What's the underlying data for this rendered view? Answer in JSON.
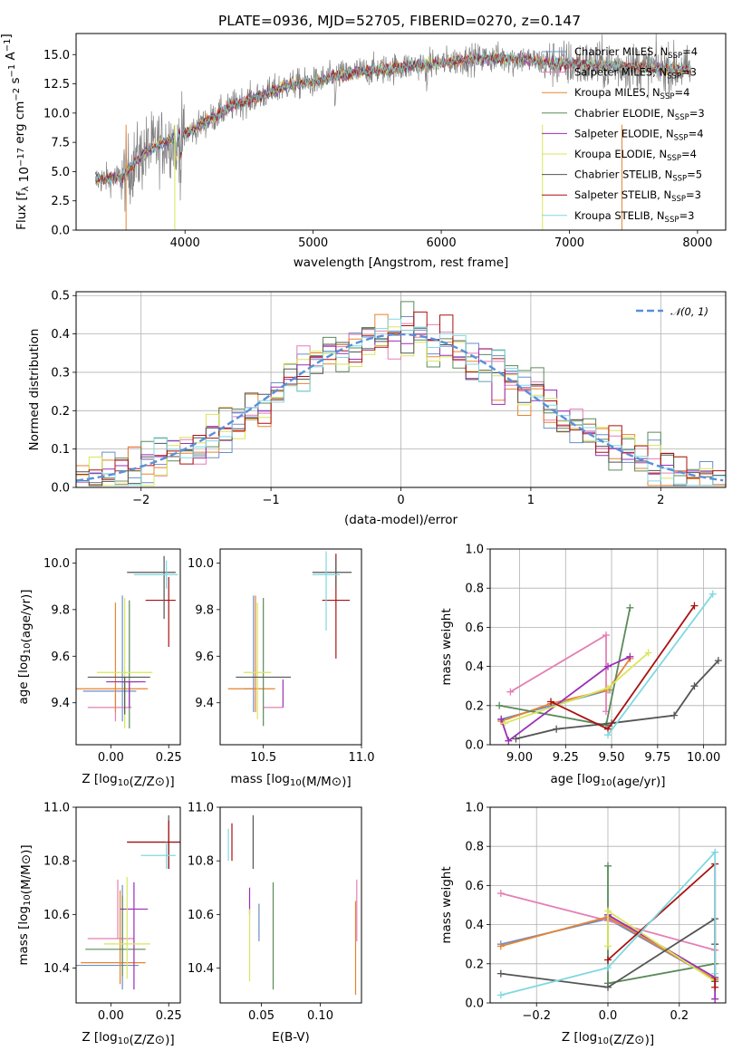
{
  "figure_title": "PLATE=0936, MJD=52705, FIBERID=0270, z=0.147",
  "colors": {
    "Chabrier MILES": "#6a8fc8",
    "Salpeter MILES": "#e57fb5",
    "Kroupa MILES": "#e8832f",
    "Chabrier ELODIE": "#5a8a5a",
    "Salpeter ELODIE": "#9b2fb5",
    "Kroupa ELODIE": "#d8e65a",
    "Chabrier STELIB": "#555555",
    "Salpeter STELIB": "#aa1111",
    "Kroupa STELIB": "#7fd8e0",
    "spectrum": "#808080",
    "gaussian": "#5a8fd8"
  },
  "chart_data": [
    {
      "id": "spectrum",
      "type": "line",
      "xlabel": "wavelength [Angstrom, rest frame]",
      "ylabel": "Flux [f_λ 10^-17 erg cm^-2 s^-1 A^-1]",
      "xlim": [
        3150,
        8220
      ],
      "ylim": [
        0,
        16.8
      ],
      "xticks": [
        "4000",
        "5000",
        "6000",
        "7000",
        "8000"
      ],
      "yticks": [
        "0.0",
        "2.5",
        "5.0",
        "7.5",
        "10.0",
        "12.5",
        "15.0"
      ],
      "x_range_data": [
        3300,
        7950
      ],
      "continuum_points": [
        [
          3300,
          4.3
        ],
        [
          3500,
          4.5
        ],
        [
          3700,
          6.8
        ],
        [
          3900,
          7.8
        ],
        [
          4000,
          8.2
        ],
        [
          4200,
          9.5
        ],
        [
          4400,
          10.8
        ],
        [
          4600,
          11.5
        ],
        [
          4800,
          12.4
        ],
        [
          5000,
          12.6
        ],
        [
          5200,
          13.2
        ],
        [
          5400,
          13.6
        ],
        [
          5600,
          13.8
        ],
        [
          5800,
          14.1
        ],
        [
          6000,
          14.3
        ],
        [
          6200,
          14.6
        ],
        [
          6400,
          14.7
        ],
        [
          6600,
          14.7
        ],
        [
          6800,
          14.3
        ],
        [
          7000,
          14.2
        ],
        [
          7200,
          14.1
        ],
        [
          7400,
          14.0
        ],
        [
          7600,
          13.9
        ],
        [
          7800,
          13.8
        ],
        [
          7950,
          13.7
        ]
      ],
      "legend": [
        {
          "label": "Chabrier MILES, N",
          "sub": "SSP",
          "rest": "=4",
          "color": "#6a8fc8"
        },
        {
          "label": "Salpeter MILES, N",
          "sub": "SSP",
          "rest": "=3",
          "color": "#e57fb5"
        },
        {
          "label": "Kroupa MILES, N",
          "sub": "SSP",
          "rest": "=4",
          "color": "#e8832f"
        },
        {
          "label": "Chabrier ELODIE, N",
          "sub": "SSP",
          "rest": "=3",
          "color": "#5a8a5a"
        },
        {
          "label": "Salpeter ELODIE, N",
          "sub": "SSP",
          "rest": "=4",
          "color": "#9b2fb5"
        },
        {
          "label": "Kroupa ELODIE, N",
          "sub": "SSP",
          "rest": "=4",
          "color": "#d8e65a"
        },
        {
          "label": "Chabrier STELIB, N",
          "sub": "SSP",
          "rest": "=5",
          "color": "#555555"
        },
        {
          "label": "Salpeter STELIB, N",
          "sub": "SSP",
          "rest": "=3",
          "color": "#aa1111"
        },
        {
          "label": "Kroupa STELIB, N",
          "sub": "SSP",
          "rest": "=3",
          "color": "#7fd8e0"
        }
      ]
    },
    {
      "id": "residuals",
      "type": "histogram",
      "xlabel": "(data-model)/error",
      "ylabel": "Normed distribution",
      "xlim": [
        -2.5,
        2.5
      ],
      "ylim": [
        0,
        0.51
      ],
      "xticks": [
        "−2",
        "−1",
        "0",
        "1",
        "2"
      ],
      "yticks": [
        "0.0",
        "0.1",
        "0.2",
        "0.3",
        "0.4",
        "0.5"
      ],
      "bin_width": 0.1,
      "grid": true,
      "legend": [
        {
          "label": "N(0,1)",
          "color": "#5a8fd8"
        }
      ]
    },
    {
      "id": "age_vs_Z",
      "type": "errorbar",
      "xlabel": "Z [log10(Z/Z⊙)]",
      "ylabel": "age [log10(age/yr)]",
      "xlim": [
        -0.15,
        0.3
      ],
      "ylim": [
        9.22,
        10.06
      ],
      "xticks": [
        "0.00",
        "0.25"
      ],
      "yticks": [
        "9.4",
        "9.6",
        "9.8",
        "10.0"
      ],
      "points": [
        {
          "model": "Chabrier MILES",
          "x": 0.05,
          "y": 9.45,
          "xerr": [
            0.17,
            0.06
          ],
          "yerr": [
            0.13,
            0.41
          ]
        },
        {
          "model": "Salpeter MILES",
          "x": 0.02,
          "y": 9.38,
          "xerr": [
            0.12,
            0.07
          ],
          "yerr": [
            0.06,
            0.06
          ]
        },
        {
          "model": "Kroupa MILES",
          "x": 0.02,
          "y": 9.46,
          "xerr": [
            0.17,
            0.14
          ],
          "yerr": [
            0.1,
            0.37
          ]
        },
        {
          "model": "Chabrier ELODIE",
          "x": 0.08,
          "y": 9.49,
          "xerr": [
            0.04,
            0.04
          ],
          "yerr": [
            0.2,
            0.35
          ]
        },
        {
          "model": "Salpeter ELODIE",
          "x": 0.08,
          "y": 9.49,
          "xerr": [
            0.1,
            0.07
          ],
          "yerr": [
            0.11,
            0.0
          ]
        },
        {
          "model": "Kroupa ELODIE",
          "x": 0.06,
          "y": 9.53,
          "xerr": [
            0.12,
            0.12
          ],
          "yerr": [
            0.24,
            0.32
          ]
        },
        {
          "model": "Chabrier STELIB",
          "x": 0.06,
          "y": 9.51,
          "xerr": [
            0.16,
            0.11
          ],
          "yerr": [
            0.16,
            0.0
          ]
        },
        {
          "model": "Salpeter STELIB",
          "x": 0.25,
          "y": 9.84,
          "xerr": [
            0.1,
            0.03
          ],
          "yerr": [
            0.2,
            0.1
          ]
        },
        {
          "model": "Chabrier STELIB",
          "x": 0.23,
          "y": 9.96,
          "xerr": [
            0.16,
            0.05
          ],
          "yerr": [
            0.2,
            0.07
          ]
        },
        {
          "model": "Kroupa STELIB",
          "x": 0.24,
          "y": 9.95,
          "xerr": [
            0.14,
            0.05
          ],
          "yerr": [
            0.06,
            0.06
          ]
        }
      ]
    },
    {
      "id": "age_vs_mass",
      "type": "errorbar",
      "xlabel": "mass [log10(M/M⊙)]",
      "ylabel": "",
      "xlim": [
        10.28,
        11.0
      ],
      "ylim": [
        9.22,
        10.06
      ],
      "xticks": [
        "10.5",
        "11.0"
      ],
      "yticks": [
        "9.4",
        "9.6",
        "9.8",
        "10.0"
      ],
      "points": [
        {
          "model": "Chabrier MILES",
          "x": 10.45,
          "y": 9.46,
          "xerr": [
            0.05,
            0.0
          ],
          "yerr": [
            0.1,
            0.4
          ]
        },
        {
          "model": "Salpeter MILES",
          "x": 10.5,
          "y": 9.38,
          "xerr": [
            0.0,
            0.1
          ],
          "yerr": [
            0.0,
            0.0
          ]
        },
        {
          "model": "Kroupa MILES",
          "x": 10.46,
          "y": 9.46,
          "xerr": [
            0.14,
            0.1
          ],
          "yerr": [
            0.1,
            0.4
          ]
        },
        {
          "model": "Chabrier ELODIE",
          "x": 10.5,
          "y": 9.5,
          "xerr": [
            0.0,
            0.0
          ],
          "yerr": [
            0.2,
            0.35
          ]
        },
        {
          "model": "Kroupa ELODIE",
          "x": 10.47,
          "y": 9.53,
          "xerr": [
            0.07,
            0.07
          ],
          "yerr": [
            0.2,
            0.3
          ]
        },
        {
          "model": "Salpeter ELODIE",
          "x": 10.6,
          "y": 9.5,
          "xerr": [
            0.0,
            0.0
          ],
          "yerr": [
            0.12,
            0.0
          ]
        },
        {
          "model": "Chabrier STELIB",
          "x": 10.5,
          "y": 9.51,
          "xerr": [
            0.14,
            0.14
          ],
          "yerr": [
            0.0,
            0.0
          ]
        },
        {
          "model": "Salpeter STELIB",
          "x": 10.87,
          "y": 9.84,
          "xerr": [
            0.07,
            0.07
          ],
          "yerr": [
            0.25,
            0.2
          ]
        },
        {
          "model": "Chabrier STELIB",
          "x": 10.87,
          "y": 9.96,
          "xerr": [
            0.12,
            0.08
          ],
          "yerr": [
            0.06,
            0.06
          ]
        },
        {
          "model": "Kroupa STELIB",
          "x": 10.82,
          "y": 9.95,
          "xerr": [
            0.07,
            0.07
          ],
          "yerr": [
            0.24,
            0.1
          ]
        }
      ]
    },
    {
      "id": "massweight_vs_age",
      "type": "line",
      "xlabel": "age [log10(age/yr)]",
      "ylabel": "mass weight",
      "xlim": [
        8.84,
        10.12
      ],
      "ylim": [
        0.0,
        1.0
      ],
      "xticks": [
        "9.00",
        "9.25",
        "9.50",
        "9.75",
        "10.00"
      ],
      "yticks": [
        "0.0",
        "0.2",
        "0.4",
        "0.6",
        "0.8",
        "1.0"
      ],
      "grid": true,
      "series": [
        {
          "model": "Chabrier MILES",
          "x": [
            8.9,
            9.49
          ],
          "y": [
            0.13,
            0.28
          ]
        },
        {
          "model": "Salpeter MILES",
          "x": [
            8.95,
            9.47,
            9.47
          ],
          "y": [
            0.27,
            0.56,
            0.17
          ]
        },
        {
          "model": "Kroupa MILES",
          "x": [
            8.9,
            9.17,
            9.48,
            9.6
          ],
          "y": [
            0.12,
            0.21,
            0.28,
            0.44
          ]
        },
        {
          "model": "Chabrier ELODIE",
          "x": [
            8.89,
            9.47,
            9.6
          ],
          "y": [
            0.2,
            0.1,
            0.7
          ]
        },
        {
          "model": "Salpeter ELODIE",
          "x": [
            8.9,
            8.94,
            9.48,
            9.6
          ],
          "y": [
            0.13,
            0.02,
            0.4,
            0.45
          ]
        },
        {
          "model": "Kroupa ELODIE",
          "x": [
            8.92,
            9.48,
            9.7
          ],
          "y": [
            0.11,
            0.29,
            0.47
          ]
        },
        {
          "model": "Chabrier STELIB",
          "x": [
            8.98,
            9.2,
            9.5,
            9.84,
            9.95,
            10.08
          ],
          "y": [
            0.03,
            0.08,
            0.11,
            0.15,
            0.3,
            0.43
          ]
        },
        {
          "model": "Salpeter STELIB",
          "x": [
            9.17,
            9.48,
            9.95
          ],
          "y": [
            0.22,
            0.08,
            0.71
          ]
        },
        {
          "model": "Kroupa STELIB",
          "x": [
            9.48,
            10.05
          ],
          "y": [
            0.05,
            0.77
          ]
        }
      ]
    },
    {
      "id": "mass_vs_Z",
      "type": "errorbar",
      "xlabel": "Z [log10(Z/Z⊙)]",
      "ylabel": "mass [log10(M/M⊙)]",
      "xlim": [
        -0.15,
        0.3
      ],
      "ylim": [
        10.27,
        11.0
      ],
      "xticks": [
        "0.00",
        "0.25"
      ],
      "yticks": [
        "10.4",
        "10.6",
        "10.8",
        "11.0"
      ],
      "points": [
        {
          "model": "Chabrier MILES",
          "x": 0.05,
          "y": 10.41,
          "xerr": [
            0.2,
            0.07
          ],
          "yerr": [
            0.09,
            0.3
          ]
        },
        {
          "model": "Salpeter MILES",
          "x": 0.03,
          "y": 10.51,
          "xerr": [
            0.13,
            0.07
          ],
          "yerr": [
            0.0,
            0.22
          ]
        },
        {
          "model": "Kroupa MILES",
          "x": 0.04,
          "y": 10.42,
          "xerr": [
            0.17,
            0.11
          ],
          "yerr": [
            0.08,
            0.27
          ]
        },
        {
          "model": "Chabrier ELODIE",
          "x": 0.05,
          "y": 10.47,
          "xerr": [
            0.16,
            0.1
          ],
          "yerr": [
            0.1,
            0.2
          ]
        },
        {
          "model": "Salpeter ELODIE",
          "x": 0.1,
          "y": 10.62,
          "xerr": [
            0.06,
            0.06
          ],
          "yerr": [
            0.3,
            0.1
          ]
        },
        {
          "model": "Kroupa ELODIE",
          "x": 0.07,
          "y": 10.49,
          "xerr": [
            0.1,
            0.1
          ],
          "yerr": [
            0.13,
            0.25
          ]
        },
        {
          "model": "Chabrier STELIB",
          "x": 0.25,
          "y": 10.87,
          "xerr": [
            0.18,
            0.05
          ],
          "yerr": [
            0.1,
            0.1
          ]
        },
        {
          "model": "Salpeter STELIB",
          "x": 0.25,
          "y": 10.87,
          "xerr": [
            0.18,
            0.05
          ],
          "yerr": [
            0.1,
            0.08
          ]
        },
        {
          "model": "Kroupa STELIB",
          "x": 0.24,
          "y": 10.82,
          "xerr": [
            0.11,
            0.04
          ],
          "yerr": [
            0.05,
            0.05
          ]
        }
      ]
    },
    {
      "id": "mass_vs_ebv",
      "type": "errorbar",
      "xlabel": "E(B-V)",
      "ylabel": "",
      "xlim": [
        0.015,
        0.135
      ],
      "ylim": [
        10.27,
        11.0
      ],
      "xticks": [
        "0.05",
        "0.10"
      ],
      "yticks": [
        "10.4",
        "10.6",
        "10.8",
        "11.0"
      ],
      "points": [
        {
          "model": "Kroupa STELIB",
          "x": 0.022,
          "y": 10.87,
          "yerr": [
            0.07,
            0.05
          ]
        },
        {
          "model": "Salpeter STELIB",
          "x": 0.025,
          "y": 10.87,
          "yerr": [
            0.07,
            0.07
          ]
        },
        {
          "model": "Salpeter ELODIE",
          "x": 0.04,
          "y": 10.65,
          "yerr": [
            0.05,
            0.05
          ]
        },
        {
          "model": "Kroupa ELODIE",
          "x": 0.04,
          "y": 10.49,
          "yerr": [
            0.14,
            0.13
          ]
        },
        {
          "model": "Chabrier STELIB",
          "x": 0.043,
          "y": 10.87,
          "yerr": [
            0.1,
            0.1
          ]
        },
        {
          "model": "Chabrier MILES",
          "x": 0.048,
          "y": 10.57,
          "yerr": [
            0.07,
            0.07
          ]
        },
        {
          "model": "Chabrier ELODIE",
          "x": 0.06,
          "y": 10.52,
          "yerr": [
            0.2,
            0.2
          ]
        },
        {
          "model": "Kroupa MILES",
          "x": 0.13,
          "y": 10.5,
          "yerr": [
            0.2,
            0.15
          ]
        },
        {
          "model": "Salpeter MILES",
          "x": 0.131,
          "y": 10.6,
          "yerr": [
            0.1,
            0.13
          ]
        }
      ]
    },
    {
      "id": "massweight_vs_Z",
      "type": "line",
      "xlabel": "Z [log10(Z/Z⊙)]",
      "ylabel": "mass weight",
      "xlim": [
        -0.33,
        0.33
      ],
      "ylim": [
        0.0,
        1.0
      ],
      "xticks": [
        "−0.2",
        "0.0",
        "0.2"
      ],
      "yticks": [
        "0.0",
        "0.2",
        "0.4",
        "0.6",
        "0.8",
        "1.0"
      ],
      "grid": true,
      "series": [
        {
          "model": "Chabrier MILES",
          "x": [
            -0.3,
            0.0,
            0.3
          ],
          "y": [
            0.3,
            0.43,
            0.12
          ]
        },
        {
          "model": "Salpeter MILES",
          "x": [
            -0.3,
            0.0,
            0.3
          ],
          "y": [
            0.56,
            0.42,
            0.27
          ]
        },
        {
          "model": "Kroupa MILES",
          "x": [
            -0.3,
            0.0,
            0.3
          ],
          "y": [
            0.29,
            0.44,
            0.12
          ]
        },
        {
          "model": "Chabrier ELODIE",
          "x": [
            0.0,
            0.0,
            0.0,
            0.3
          ],
          "y": [
            0.7,
            0.1,
            0.1,
            0.2
          ]
        },
        {
          "model": "Salpeter ELODIE",
          "x": [
            0.0,
            0.3,
            0.3
          ],
          "y": [
            0.45,
            0.13,
            0.02
          ]
        },
        {
          "model": "Kroupa ELODIE",
          "x": [
            0.0,
            0.0,
            0.3
          ],
          "y": [
            0.29,
            0.47,
            0.11
          ]
        },
        {
          "model": "Chabrier STELIB",
          "x": [
            -0.3,
            0.0,
            0.3,
            0.3,
            0.3
          ],
          "y": [
            0.15,
            0.08,
            0.43,
            0.3,
            0.11
          ]
        },
        {
          "model": "Salpeter STELIB",
          "x": [
            0.0,
            0.3,
            0.3
          ],
          "y": [
            0.22,
            0.71,
            0.08
          ]
        },
        {
          "model": "Kroupa STELIB",
          "x": [
            -0.3,
            0.0,
            0.3,
            0.3
          ],
          "y": [
            0.04,
            0.18,
            0.77,
            0.15
          ]
        }
      ]
    }
  ]
}
